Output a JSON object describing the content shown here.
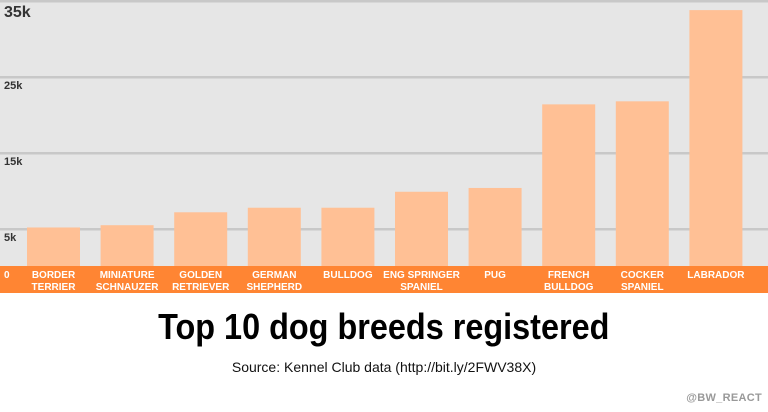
{
  "chart_data": {
    "type": "bar",
    "title": "Top 10 dog breeds registered",
    "subtitle": "Source: Kennel Club data (http://bit.ly/2FWV38X)",
    "credit": "@BW_REACT",
    "xlabel": "",
    "ylabel": "",
    "ylim": [
      0,
      35000
    ],
    "grid": true,
    "y_ticks": [
      {
        "value": 0,
        "label": "0"
      },
      {
        "value": 5000,
        "label": "5k"
      },
      {
        "value": 15000,
        "label": "15k"
      },
      {
        "value": 25000,
        "label": "25k"
      },
      {
        "value": 35000,
        "label": "35k"
      }
    ],
    "categories": [
      [
        "BORDER",
        "TERRIER"
      ],
      [
        "MINIATURE",
        "SCHNAUZER"
      ],
      [
        "GOLDEN",
        "RETRIEVER"
      ],
      [
        "GERMAN",
        "SHEPHERD"
      ],
      [
        "BULLDOG"
      ],
      [
        "ENG SPRINGER",
        "SPANIEL"
      ],
      [
        "PUG"
      ],
      [
        "FRENCH",
        "BULLDOG"
      ],
      [
        "COCKER",
        "SPANIEL"
      ],
      [
        "LABRADOR"
      ]
    ],
    "values": [
      5200,
      5500,
      7200,
      7800,
      7800,
      9900,
      10400,
      21400,
      21800,
      33800
    ],
    "colors": {
      "bar": "#FFC095",
      "axis_band": "#FF8533",
      "plot_bg": "#E6E6E6",
      "grid": "#C8C8C8"
    }
  }
}
